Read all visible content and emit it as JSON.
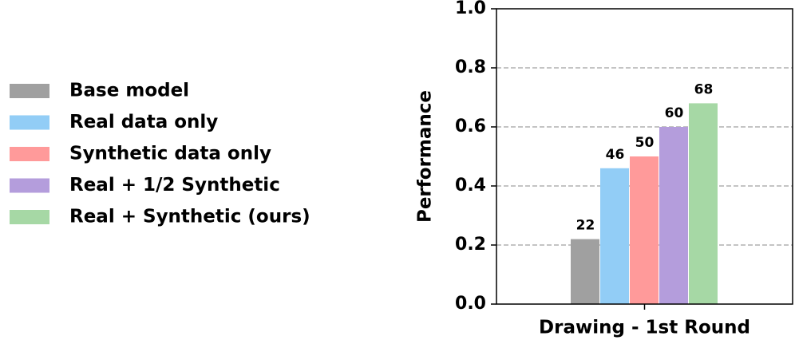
{
  "chart_data": {
    "type": "bar",
    "y_label": "Performance",
    "categories": [
      "Drawing - 1st Round"
    ],
    "series": [
      {
        "name": "Base model",
        "color": "#a0a0a0",
        "values": [
          0.22
        ],
        "value_labels": [
          "22"
        ]
      },
      {
        "name": "Real data only",
        "color": "#92cdf6",
        "values": [
          0.46
        ],
        "value_labels": [
          "46"
        ]
      },
      {
        "name": "Synthetic data only",
        "color": "#ff9a9a",
        "values": [
          0.5
        ],
        "value_labels": [
          "50"
        ]
      },
      {
        "name": "Real + 1/2 Synthetic",
        "color": "#b49ddc",
        "values": [
          0.6
        ],
        "value_labels": [
          "60"
        ]
      },
      {
        "name": "Real + Synthetic (ours)",
        "color": "#a6d8a5",
        "values": [
          0.68
        ],
        "value_labels": [
          "68"
        ]
      }
    ],
    "ylim": [
      0,
      1
    ],
    "yticks": [
      {
        "value": 0,
        "label": "0.0"
      },
      {
        "value": 0.2,
        "label": "0.2"
      },
      {
        "value": 0.4,
        "label": "0.4"
      },
      {
        "value": 0.6,
        "label": "0.6"
      },
      {
        "value": 0.8,
        "label": "0.8"
      },
      {
        "value": 1,
        "label": "1.0"
      }
    ],
    "grid": true,
    "legend": "left"
  }
}
